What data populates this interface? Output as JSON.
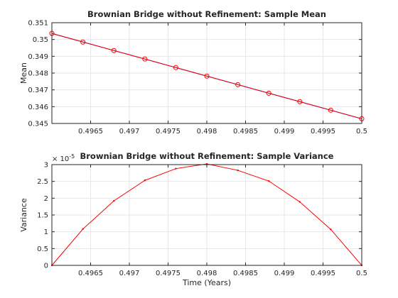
{
  "chart_data": [
    {
      "type": "line",
      "title": "Brownian Bridge without Refinement: Sample Mean",
      "xlabel": "",
      "ylabel": "Mean",
      "xlim": [
        0.496,
        0.5
      ],
      "ylim": [
        0.345,
        0.351
      ],
      "xticks": [
        0.4965,
        0.497,
        0.4975,
        0.498,
        0.4985,
        0.499,
        0.4995,
        0.5
      ],
      "xtick_labels": [
        "0.4965",
        "0.497",
        "0.4975",
        "0.498",
        "0.4985",
        "0.499",
        "0.4995",
        "0.5"
      ],
      "yticks": [
        0.345,
        0.346,
        0.347,
        0.348,
        0.349,
        0.35,
        0.351
      ],
      "ytick_labels": [
        "0.345",
        "0.346",
        "0.347",
        "0.348",
        "0.349",
        "0.35",
        "0.351"
      ],
      "grid": true,
      "series": [
        {
          "color": "#0000cc",
          "marker": "none",
          "x": [
            0.496,
            0.5
          ],
          "y": [
            0.35036,
            0.34528
          ]
        },
        {
          "color": "#ff0000",
          "marker": "circle",
          "x": [
            0.496,
            0.4964,
            0.4968,
            0.4972,
            0.4976,
            0.498,
            0.4984,
            0.4988,
            0.4992,
            0.4996,
            0.5
          ],
          "y": [
            0.35036,
            0.34985,
            0.34934,
            0.34884,
            0.34833,
            0.34782,
            0.34731,
            0.3468,
            0.3463,
            0.34579,
            0.34528
          ]
        }
      ]
    },
    {
      "type": "line",
      "title": "Brownian Bridge without Refinement: Sample Variance",
      "xlabel": "Time (Years)",
      "ylabel": "Variance",
      "exponent_label": "× 10",
      "exponent_power": "-5",
      "xlim": [
        0.496,
        0.5
      ],
      "ylim": [
        0,
        3
      ],
      "xticks": [
        0.4965,
        0.497,
        0.4975,
        0.498,
        0.4985,
        0.499,
        0.4995,
        0.5
      ],
      "xtick_labels": [
        "0.4965",
        "0.497",
        "0.4975",
        "0.498",
        "0.4985",
        "0.499",
        "0.4995",
        "0.5"
      ],
      "yticks": [
        0,
        0.5,
        1,
        1.5,
        2,
        2.5,
        3
      ],
      "ytick_labels": [
        "0",
        "0.5",
        "1",
        "1.5",
        "2",
        "2.5",
        "3"
      ],
      "grid": true,
      "series": [
        {
          "color": "#ff0000",
          "marker": "dot",
          "x": [
            0.496,
            0.4964,
            0.4968,
            0.4972,
            0.4976,
            0.498,
            0.4984,
            0.4988,
            0.4992,
            0.4996,
            0.5
          ],
          "y": [
            0,
            1.08,
            1.92,
            2.53,
            2.88,
            3.02,
            2.83,
            2.51,
            1.89,
            1.07,
            0
          ]
        }
      ]
    }
  ]
}
